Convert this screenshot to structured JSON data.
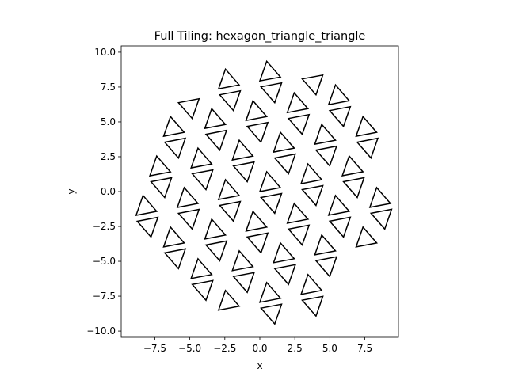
{
  "chart_data": {
    "type": "line",
    "title": "Full Tiling: hexagon_triangle_triangle",
    "xlabel": "x",
    "ylabel": "y",
    "xlim": [
      -9.9,
      9.9
    ],
    "ylim": [
      -10.45,
      10.45
    ],
    "x_ticks": [
      -7.5,
      -5.0,
      -2.5,
      0.0,
      2.5,
      5.0,
      7.5
    ],
    "y_ticks": [
      -10.0,
      -7.5,
      -5.0,
      -2.5,
      0.0,
      2.5,
      5.0,
      7.5,
      10.0
    ],
    "x_tick_labels": [
      "−7.5",
      "−5.0",
      "−2.5",
      "0.0",
      "2.5",
      "5.0",
      "7.5"
    ],
    "y_tick_labels": [
      "−10.0",
      "−7.5",
      "−5.0",
      "−2.5",
      "0.0",
      "2.5",
      "5.0",
      "7.5",
      "10.0"
    ],
    "grid": false,
    "line_color": "#000000",
    "tiling": {
      "edge_length": 1.5,
      "lattice_a": [
        3.0,
        0.0
      ],
      "lattice_b": [
        1.5,
        2.598
      ],
      "rotation_deg": 10.9,
      "radius": 9.0
    }
  }
}
